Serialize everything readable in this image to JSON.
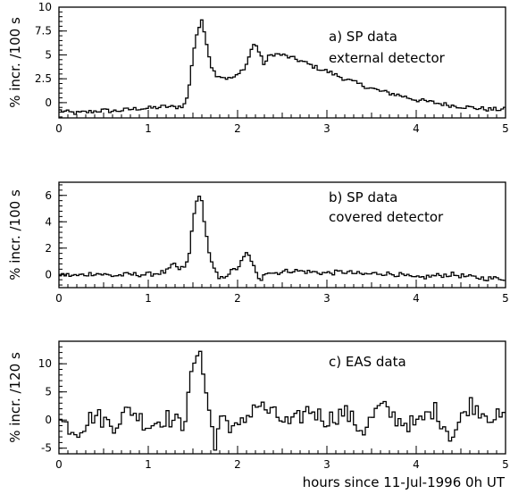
{
  "xlabel": "hours since 11-Jul-1996 0h UT",
  "chart_data": [
    {
      "type": "line",
      "panel": "a",
      "annotation": [
        "a) SP data",
        "external detector"
      ],
      "ylabel": "% incr. /100 s",
      "xlim": [
        0,
        5
      ],
      "ylim": [
        -1.6,
        10
      ],
      "x_ticks": [
        0,
        1,
        2,
        3,
        4,
        5
      ],
      "y_ticks": [
        0,
        2.5,
        5,
        7.5,
        10
      ],
      "y_tick_labels": [
        "0",
        "2.5",
        "5",
        "7.5",
        "10"
      ],
      "bin_hours": 0.0278,
      "series": [
        {
          "x": [
            0.0,
            0.1,
            0.2,
            0.3,
            0.4,
            0.5,
            0.6,
            0.7,
            0.8,
            0.9,
            1.0,
            1.1,
            1.2,
            1.3,
            1.4,
            1.45,
            1.5,
            1.55,
            1.6,
            1.65,
            1.7,
            1.75,
            1.8,
            1.9,
            2.0,
            2.1,
            2.15,
            2.2,
            2.25,
            2.3,
            2.35,
            2.4,
            2.5,
            2.6,
            2.7,
            2.8,
            2.9,
            3.0,
            3.2,
            3.4,
            3.6,
            3.8,
            4.0,
            4.2,
            4.4,
            4.6,
            4.8,
            5.0
          ],
          "values": [
            -0.8,
            -1.0,
            -1.1,
            -1.0,
            -0.9,
            -0.8,
            -0.9,
            -0.8,
            -0.7,
            -0.6,
            -0.6,
            -0.5,
            -0.4,
            -0.5,
            -0.3,
            1.0,
            5.0,
            7.5,
            8.5,
            6.5,
            4.0,
            3.0,
            2.8,
            2.5,
            2.8,
            4.0,
            5.5,
            6.3,
            5.0,
            4.0,
            4.8,
            5.1,
            5.0,
            4.7,
            4.4,
            4.0,
            3.6,
            3.3,
            2.5,
            1.8,
            1.2,
            0.8,
            0.3,
            0.0,
            -0.3,
            -0.5,
            -0.7,
            -0.7
          ]
        }
      ]
    },
    {
      "type": "line",
      "panel": "b",
      "annotation": [
        "b) SP data",
        "covered detector"
      ],
      "ylabel": "% incr. /100 s",
      "xlim": [
        0,
        5
      ],
      "ylim": [
        -1.0,
        7.0
      ],
      "x_ticks": [
        0,
        1,
        2,
        3,
        4,
        5
      ],
      "y_ticks": [
        0,
        2,
        4,
        6
      ],
      "y_tick_labels": [
        "0",
        "2",
        "4",
        "6"
      ],
      "bin_hours": 0.0278,
      "series": [
        {
          "x": [
            0.0,
            0.2,
            0.4,
            0.6,
            0.8,
            1.0,
            1.2,
            1.3,
            1.35,
            1.4,
            1.45,
            1.5,
            1.55,
            1.6,
            1.65,
            1.7,
            1.75,
            1.8,
            1.9,
            2.0,
            2.05,
            2.1,
            2.15,
            2.2,
            2.25,
            2.3,
            2.35,
            2.4,
            2.6,
            2.8,
            3.0,
            3.2,
            3.4,
            3.6,
            3.8,
            4.0,
            4.2,
            4.4,
            4.6,
            4.8,
            5.0
          ],
          "values": [
            0.0,
            -0.1,
            0.1,
            -0.1,
            0.0,
            0.0,
            0.2,
            0.8,
            0.3,
            0.6,
            1.0,
            4.0,
            6.0,
            5.5,
            3.0,
            1.0,
            0.2,
            -0.4,
            0.1,
            0.5,
            1.0,
            1.6,
            1.2,
            0.2,
            -0.6,
            0.2,
            0.2,
            0.1,
            0.3,
            0.2,
            0.1,
            0.2,
            0.0,
            0.1,
            0.0,
            -0.3,
            -0.1,
            0.0,
            -0.2,
            -0.3,
            -0.3
          ]
        }
      ]
    },
    {
      "type": "line",
      "panel": "c",
      "annotation": [
        "c) EAS data"
      ],
      "ylabel": "% incr. /120 s",
      "xlim": [
        0,
        5
      ],
      "ylim": [
        -6,
        14
      ],
      "x_ticks": [
        0,
        1,
        2,
        3,
        4,
        5
      ],
      "y_ticks": [
        -5,
        0,
        5,
        10
      ],
      "y_tick_labels": [
        "-5",
        "0",
        "5",
        "10"
      ],
      "bin_hours": 0.0333,
      "series": [
        {
          "x": [
            0.0,
            0.2,
            0.4,
            0.6,
            0.8,
            1.0,
            1.2,
            1.4,
            1.45,
            1.5,
            1.55,
            1.6,
            1.65,
            1.7,
            1.75,
            1.8,
            2.0,
            2.2,
            2.4,
            2.6,
            2.8,
            3.0,
            3.2,
            3.4,
            3.6,
            3.8,
            4.0,
            4.2,
            4.4,
            4.6,
            4.8,
            5.0
          ],
          "values": [
            0.0,
            -2.0,
            1.0,
            -1.0,
            2.0,
            -1.0,
            0.5,
            -1.0,
            6.0,
            8.0,
            12.0,
            10.0,
            6.0,
            0.0,
            -5.5,
            1.0,
            -2.0,
            3.0,
            1.0,
            -1.0,
            2.0,
            0.0,
            1.5,
            -2.0,
            2.5,
            0.0,
            -1.0,
            2.0,
            -3.0,
            3.0,
            1.0,
            0.0
          ]
        }
      ]
    }
  ]
}
